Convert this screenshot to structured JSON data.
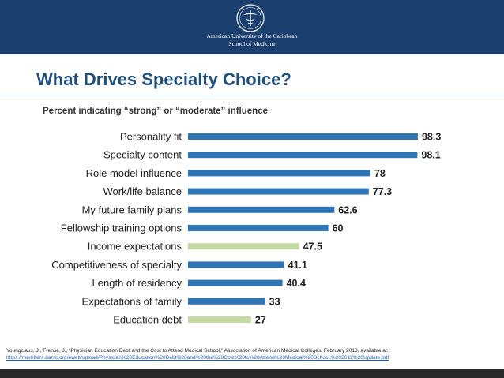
{
  "header": {
    "institution_line1": "American University of the Caribbean",
    "institution_line2": "School of Medicine",
    "background_color": "#1b3f6e"
  },
  "slide": {
    "title": "What Drives Specialty Choice?"
  },
  "chart_data": {
    "type": "bar",
    "orientation": "horizontal",
    "title": "Percent indicating “strong” or “moderate” influence",
    "xlabel": "",
    "ylabel": "",
    "xlim": [
      0,
      100
    ],
    "grid": false,
    "categories": [
      "Personality fit",
      "Specialty content",
      "Role model influence",
      "Work/life balance",
      "My future family plans",
      "Fellowship training options",
      "Income expectations",
      "Competitiveness of specialty",
      "Length of residency",
      "Expectations of family",
      "Education debt"
    ],
    "values": [
      98.3,
      98.1,
      78,
      77.3,
      62.6,
      60,
      47.5,
      41.1,
      40.4,
      33,
      27
    ],
    "value_labels": [
      "98.3",
      "98.1",
      "78",
      "77.3",
      "62.6",
      "60",
      "47.5",
      "41.1",
      "40.4",
      "33",
      "27"
    ],
    "highlighted": [
      false,
      false,
      false,
      false,
      false,
      false,
      true,
      false,
      false,
      false,
      true
    ],
    "colors": {
      "default": "#2e75b6",
      "highlight": "#c5d9a2"
    }
  },
  "citation": {
    "text": "Youngclaus, J., Frense, J., “Physician Education Debt and the Cost to Attend Medical School,” Association of American Medical Colleges, February 2013, available at:",
    "url": "https://members.aamc.org/eweb/upload/Physician%20Education%20Debt%20and%20the%20Cost%20to%20Attend%20Medical%20School,%202012%20Update.pdf"
  }
}
